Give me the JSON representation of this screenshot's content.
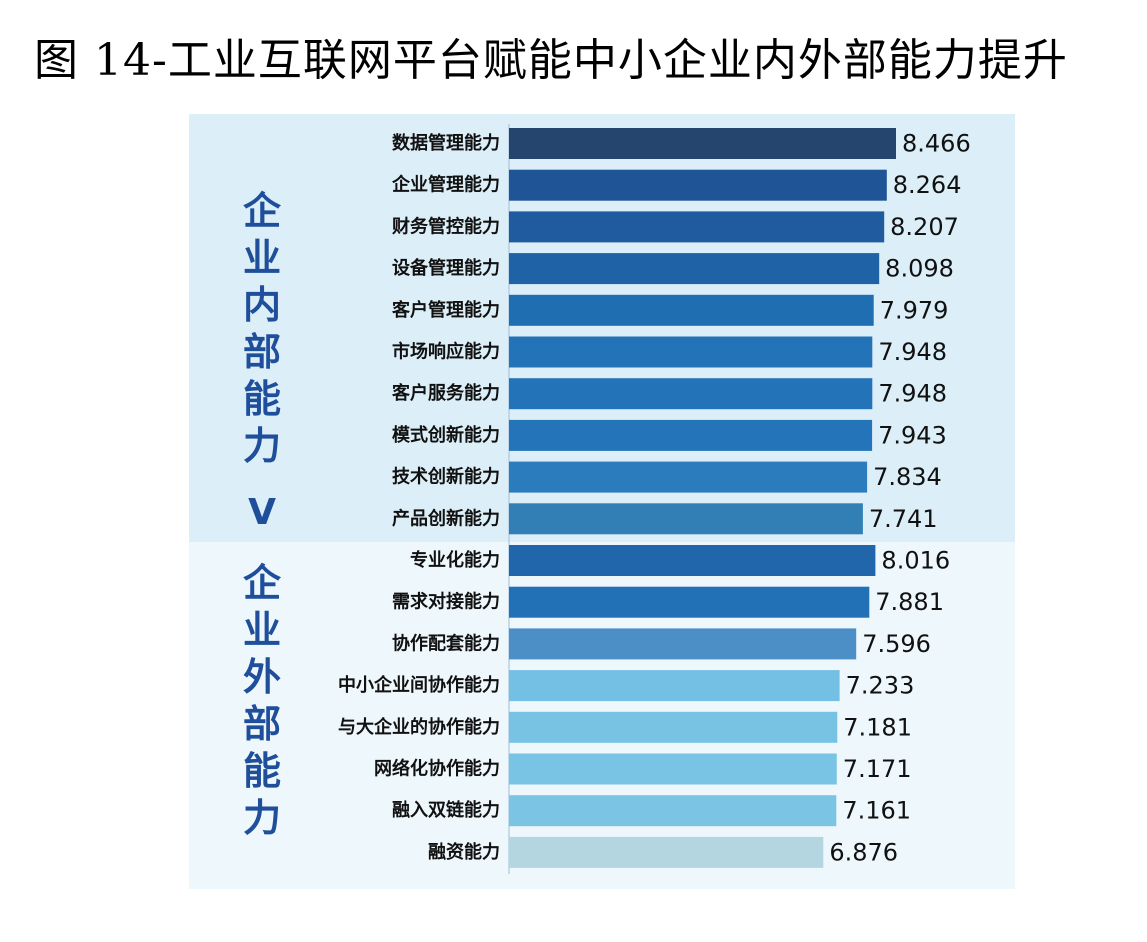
{
  "title": "图 14-工业互联网平台赋能中小企业内外部能力提升",
  "groups": {
    "internal": "企业内部能力",
    "comparison": "V",
    "external": "企业外部能力"
  },
  "chart_data": {
    "type": "bar",
    "orientation": "horizontal",
    "title": "图 14-工业互联网平台赋能中小企业内外部能力提升",
    "categories": [
      "数据管理能力",
      "企业管理能力",
      "财务管控能力",
      "设备管理能力",
      "客户管理能力",
      "市场响应能力",
      "客户服务能力",
      "模式创新能力",
      "技术创新能力",
      "产品创新能力",
      "专业化能力",
      "需求对接能力",
      "协作配套能力",
      "中小企业间协作能力",
      "与大企业的协作能力",
      "网络化协作能力",
      "融入双链能力",
      "融资能力"
    ],
    "values": [
      8.466,
      8.264,
      8.207,
      8.098,
      7.979,
      7.948,
      7.948,
      7.943,
      7.834,
      7.741,
      8.016,
      7.881,
      7.596,
      7.233,
      7.181,
      7.171,
      7.161,
      6.876
    ],
    "value_labels": [
      "8.466",
      "8.264",
      "8.207",
      "8.098",
      "7.979",
      "7.948",
      "7.948",
      "7.943",
      "7.834",
      "7.741",
      "8.016",
      "7.881",
      "7.596",
      "7.233",
      "7.181",
      "7.171",
      "7.161",
      "6.876"
    ],
    "group_of_category": [
      "internal",
      "internal",
      "internal",
      "internal",
      "internal",
      "internal",
      "internal",
      "internal",
      "internal",
      "internal",
      "external",
      "external",
      "external",
      "external",
      "external",
      "external",
      "external",
      "external"
    ],
    "colors": [
      "#25456e",
      "#1f5596",
      "#1f5b9e",
      "#1f62a6",
      "#206eb2",
      "#2273b8",
      "#2273b8",
      "#2374b9",
      "#2b7cbc",
      "#327fb5",
      "#2166ab",
      "#2271b6",
      "#4b8fc6",
      "#74bfe4",
      "#78c2e4",
      "#79c4e5",
      "#7bc4e4",
      "#b3d6e0"
    ],
    "xlim": [
      0,
      8.466
    ],
    "grid": false,
    "legend": "none"
  }
}
